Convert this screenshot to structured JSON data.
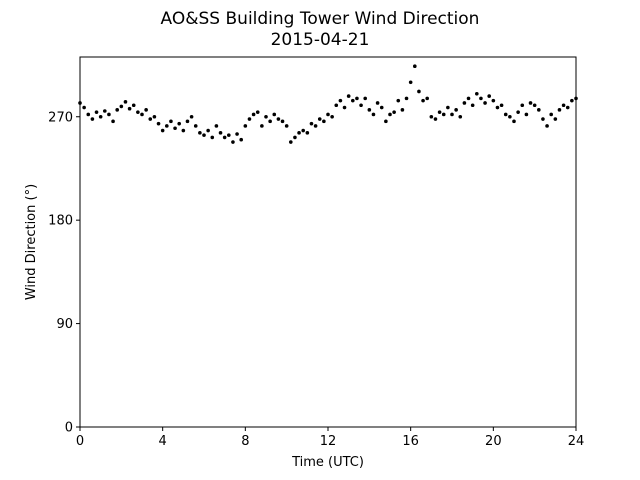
{
  "chart_data": {
    "type": "scatter",
    "title": "AO&SS Building Tower Wind Direction",
    "subtitle": "2015-04-21",
    "x_label": "Time (UTC)",
    "y_label": "Wind Direction (°)",
    "color": "#000000",
    "xlim": [
      0,
      24
    ],
    "xticks": [
      0,
      4,
      8,
      12,
      16,
      20,
      24
    ],
    "ylim": [
      0,
      322
    ],
    "yticks": [
      0,
      90,
      180,
      270
    ],
    "x": [
      0,
      0.2,
      0.4,
      0.6,
      0.8,
      1,
      1.2,
      1.4,
      1.6,
      1.8,
      2,
      2.2,
      2.4,
      2.6,
      2.8,
      3,
      3.2,
      3.4,
      3.6,
      3.8,
      4,
      4.2,
      4.4,
      4.6,
      4.8,
      5,
      5.2,
      5.4,
      5.6,
      5.8,
      6,
      6.2,
      6.4,
      6.6,
      6.8,
      7,
      7.2,
      7.4,
      7.6,
      7.8,
      8,
      8.2,
      8.4,
      8.6,
      8.8,
      9,
      9.2,
      9.4,
      9.6,
      9.8,
      10,
      10.2,
      10.4,
      10.6,
      10.8,
      11,
      11.2,
      11.4,
      11.6,
      11.8,
      12,
      12.2,
      12.4,
      12.6,
      12.8,
      13,
      13.2,
      13.4,
      13.6,
      13.8,
      14,
      14.2,
      14.4,
      14.6,
      14.8,
      15,
      15.2,
      15.4,
      15.6,
      15.8,
      16,
      16.2,
      16.4,
      16.6,
      16.8,
      17,
      17.2,
      17.4,
      17.6,
      17.8,
      18,
      18.2,
      18.4,
      18.6,
      18.8,
      19,
      19.2,
      19.4,
      19.6,
      19.8,
      20,
      20.2,
      20.4,
      20.6,
      20.8,
      21,
      21.2,
      21.4,
      21.6,
      21.8,
      22,
      22.2,
      22.4,
      22.6,
      22.8,
      23,
      23.2,
      23.4,
      23.6,
      23.8,
      24
    ],
    "values": [
      282,
      278,
      272,
      268,
      274,
      270,
      275,
      272,
      266,
      276,
      279,
      283,
      277,
      280,
      274,
      272,
      276,
      268,
      270,
      264,
      258,
      262,
      266,
      260,
      264,
      258,
      266,
      270,
      262,
      256,
      254,
      258,
      252,
      262,
      256,
      252,
      254,
      248,
      255,
      250,
      262,
      268,
      272,
      274,
      262,
      270,
      266,
      272,
      268,
      266,
      262,
      248,
      252,
      256,
      258,
      256,
      264,
      262,
      268,
      266,
      272,
      270,
      280,
      284,
      278,
      288,
      284,
      286,
      280,
      286,
      276,
      272,
      282,
      278,
      266,
      272,
      274,
      284,
      276,
      286,
      300,
      314,
      292,
      284,
      286,
      270,
      268,
      274,
      272,
      278,
      272,
      276,
      270,
      282,
      286,
      280,
      290,
      286,
      282,
      288,
      284,
      278,
      280,
      272,
      270,
      266,
      274,
      280,
      272,
      282,
      280,
      276,
      268,
      262,
      272,
      268,
      276,
      280,
      278,
      284,
      286
    ]
  }
}
